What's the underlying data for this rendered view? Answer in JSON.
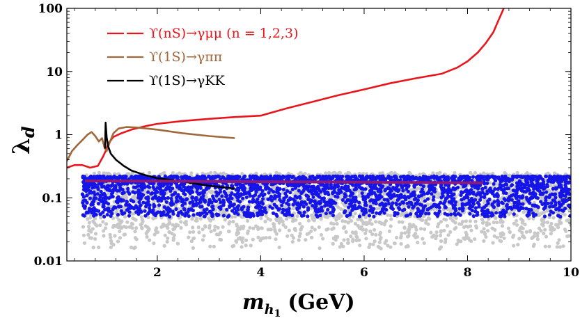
{
  "chart_data": {
    "type": "scatter",
    "xlabel": "m",
    "xlabel_sub": "h",
    "xlabel_subsub": "1",
    "xlabel_unit": "(GeV)",
    "ylabel": "λ",
    "ylabel_sub": "d",
    "xlim": [
      0.25,
      10
    ],
    "ylim": [
      0.01,
      100
    ],
    "yscale": "log",
    "x_ticks": [
      {
        "v": 2,
        "label": "2"
      },
      {
        "v": 4,
        "label": "4"
      },
      {
        "v": 6,
        "label": "6"
      },
      {
        "v": 8,
        "label": "8"
      },
      {
        "v": 10,
        "label": "10"
      }
    ],
    "y_ticks": [
      {
        "v": 0.01,
        "label": "0.01"
      },
      {
        "v": 0.1,
        "label": "0.1"
      },
      {
        "v": 1,
        "label": "1"
      },
      {
        "v": 10,
        "label": "10"
      },
      {
        "v": 100,
        "label": "100"
      }
    ],
    "grid": false,
    "legend_position": "top-left",
    "series": [
      {
        "name": "ϒ(nS)→γμμ (n = 1,2,3)",
        "kind": "line",
        "color": "#e8161b",
        "points": [
          [
            0.25,
            0.3
          ],
          [
            0.4,
            0.33
          ],
          [
            0.55,
            0.33
          ],
          [
            0.7,
            0.3
          ],
          [
            0.85,
            0.32
          ],
          [
            0.95,
            0.45
          ],
          [
            1.0,
            0.55
          ],
          [
            1.05,
            0.72
          ],
          [
            1.15,
            0.92
          ],
          [
            1.3,
            1.05
          ],
          [
            1.5,
            1.2
          ],
          [
            1.8,
            1.38
          ],
          [
            2.0,
            1.48
          ],
          [
            2.5,
            1.65
          ],
          [
            3.0,
            1.78
          ],
          [
            3.5,
            1.9
          ],
          [
            4.0,
            2.0
          ],
          [
            4.5,
            2.6
          ],
          [
            5.0,
            3.3
          ],
          [
            5.5,
            4.2
          ],
          [
            6.0,
            5.2
          ],
          [
            6.5,
            6.5
          ],
          [
            7.0,
            7.8
          ],
          [
            7.5,
            9.2
          ],
          [
            7.8,
            11.5
          ],
          [
            8.0,
            14.5
          ],
          [
            8.2,
            20
          ],
          [
            8.35,
            28
          ],
          [
            8.5,
            42
          ],
          [
            8.6,
            65
          ],
          [
            8.7,
            100
          ]
        ]
      },
      {
        "name": "ϒ(1S)→γππ",
        "kind": "line",
        "color": "#a0683a",
        "points": [
          [
            0.25,
            0.38
          ],
          [
            0.35,
            0.55
          ],
          [
            0.45,
            0.68
          ],
          [
            0.55,
            0.82
          ],
          [
            0.65,
            1.0
          ],
          [
            0.73,
            1.1
          ],
          [
            0.8,
            0.95
          ],
          [
            0.87,
            0.78
          ],
          [
            0.93,
            0.88
          ],
          [
            0.98,
            0.62
          ],
          [
            1.02,
            0.55
          ],
          [
            1.07,
            0.72
          ],
          [
            1.15,
            1.05
          ],
          [
            1.25,
            1.25
          ],
          [
            1.4,
            1.32
          ],
          [
            1.6,
            1.3
          ],
          [
            2.0,
            1.2
          ],
          [
            2.5,
            1.05
          ],
          [
            3.0,
            0.95
          ],
          [
            3.5,
            0.88
          ]
        ]
      },
      {
        "name": "ϒ(1S)→γKK",
        "kind": "line",
        "color": "#000000",
        "points": [
          [
            0.99,
            0.6
          ],
          [
            1.0,
            1.55
          ],
          [
            1.02,
            0.9
          ],
          [
            1.05,
            0.65
          ],
          [
            1.1,
            0.5
          ],
          [
            1.2,
            0.4
          ],
          [
            1.35,
            0.32
          ],
          [
            1.5,
            0.27
          ],
          [
            1.75,
            0.23
          ],
          [
            2.0,
            0.205
          ],
          [
            2.5,
            0.18
          ],
          [
            3.0,
            0.155
          ],
          [
            3.5,
            0.14
          ]
        ]
      },
      {
        "name": "",
        "kind": "line",
        "color": "#8b1a78",
        "points": [
          [
            0.6,
            0.185
          ],
          [
            2.0,
            0.183
          ],
          [
            4.0,
            0.18
          ],
          [
            6.0,
            0.177
          ],
          [
            8.3,
            0.172
          ]
        ]
      },
      {
        "name": "",
        "kind": "scatter",
        "color": "#c8c8c8",
        "x_range": [
          0.55,
          10
        ],
        "y_range": [
          0.015,
          0.25
        ]
      },
      {
        "name": "",
        "kind": "scatter",
        "color": "#1515e8",
        "x_range": [
          0.55,
          10
        ],
        "y_range": [
          0.05,
          0.22
        ]
      }
    ]
  }
}
